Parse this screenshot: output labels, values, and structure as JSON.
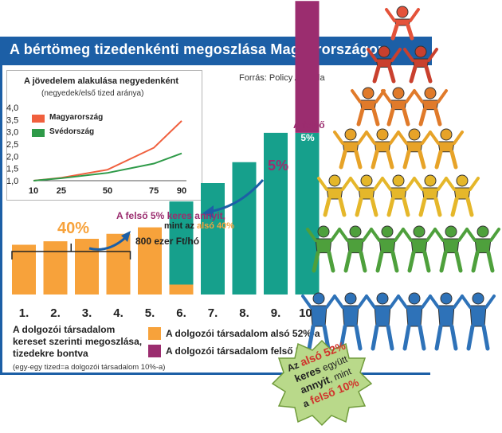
{
  "title": "A bértömeg tizedenkénti megoszlása Magyarországon",
  "source": "Forrás: Policy Agenda",
  "colors": {
    "blue": "#1c5fa6",
    "orange": "#f7a23b",
    "teal": "#16a08c",
    "purple": "#9b2d6f",
    "red": "#f0603e",
    "green": "#2e9a48"
  },
  "inset_chart": {
    "type": "line",
    "title": "A jövedelem alakulása negyedenként",
    "subtitle": "(negyedek/első tized aránya)",
    "x": [
      10,
      25,
      50,
      75,
      90
    ],
    "x_ticks": [
      "10",
      "25",
      "50",
      "75",
      "90"
    ],
    "y_ticks": [
      "1,0",
      "1,5",
      "2,0",
      "2,5",
      "3,0",
      "3,5",
      "4,0"
    ],
    "ylim": [
      1.0,
      4.0
    ],
    "series": [
      {
        "name": "Magyarország",
        "color": "#f0603e",
        "values": [
          1.0,
          1.12,
          1.45,
          2.35,
          3.45
        ]
      },
      {
        "name": "Svédország",
        "color": "#2e9a48",
        "values": [
          1.0,
          1.1,
          1.32,
          1.7,
          2.12
        ]
      }
    ]
  },
  "chart_data": {
    "type": "bar",
    "categories": [
      "1.",
      "2.",
      "3.",
      "4.",
      "5.",
      "6.",
      "7.",
      "8.",
      "9.",
      "10."
    ],
    "values": [
      1.0,
      1.07,
      1.12,
      1.22,
      1.35,
      1.87,
      2.24,
      2.66,
      3.25,
      5.9
    ],
    "segments": [
      {
        "name": "A dolgozói társadalom alsó 52%-a",
        "values": [
          1.0,
          1.07,
          1.12,
          1.22,
          1.35,
          0.2,
          0,
          0,
          0,
          0
        ],
        "color": "#f7a23b"
      },
      {
        "name": "",
        "values": [
          0,
          0,
          0,
          0,
          0,
          1.67,
          2.24,
          2.66,
          3.25,
          3.25
        ],
        "color": "#16a08c"
      },
      {
        "name": "A dolgozói társadalom felső 5%-a",
        "values": [
          0,
          0,
          0,
          0,
          0,
          0,
          0,
          0,
          0,
          2.65
        ],
        "color": "#9b2d6f"
      }
    ],
    "ylim": [
      0,
      6
    ],
    "annotations": {
      "bracket_label": "40%",
      "top_label_line1": "A felső",
      "top_label_line2": "5%",
      "side_label": "5%",
      "callout_line1": "A felső 5% keres annyit,",
      "callout_line2a": "mint az ",
      "callout_line2b": "alsó 40%",
      "callout_line3": "800 ezer Ft/hó"
    },
    "caption_lines": [
      "A dolgozói társadalom",
      "kereset szerinti megoszlása,",
      "tizedekre bontva"
    ],
    "note": "(egy-egy tized=a dolgozói társadalom 10%-a)"
  },
  "badge": {
    "lines": [
      "Az alsó 52%",
      "keres együtt",
      "annyit, mint",
      "a felső 10%"
    ],
    "l1a": "Az ",
    "l1b": "alsó 52%",
    "l2a": "keres",
    "l2b": " együtt",
    "l3a": "annyit",
    "l3b": ", mint",
    "l4a": "a ",
    "l4b": "felső 10%"
  }
}
